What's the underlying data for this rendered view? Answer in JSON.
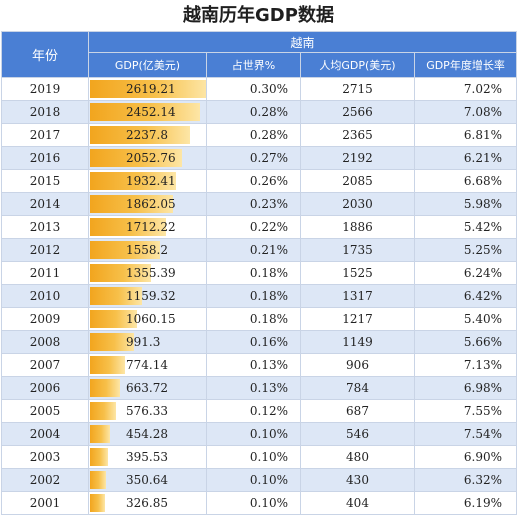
{
  "title": "越南历年GDP数据",
  "header": {
    "year": "年份",
    "country": "越南",
    "gdp": "GDP(亿美元)",
    "world_share": "占世界%",
    "per_capita": "人均GDP(美元)",
    "growth": "GDP年度增长率"
  },
  "rows": [
    {
      "year": "2019",
      "gdp": "2619.21",
      "gdp_value": 2619.21,
      "share": "0.30%",
      "per_capita": "2715",
      "growth": "7.02%"
    },
    {
      "year": "2018",
      "gdp": "2452.14",
      "gdp_value": 2452.14,
      "share": "0.28%",
      "per_capita": "2566",
      "growth": "7.08%"
    },
    {
      "year": "2017",
      "gdp": "2237.8",
      "gdp_value": 2237.8,
      "share": "0.28%",
      "per_capita": "2365",
      "growth": "6.81%"
    },
    {
      "year": "2016",
      "gdp": "2052.76",
      "gdp_value": 2052.76,
      "share": "0.27%",
      "per_capita": "2192",
      "growth": "6.21%"
    },
    {
      "year": "2015",
      "gdp": "1932.41",
      "gdp_value": 1932.41,
      "share": "0.26%",
      "per_capita": "2085",
      "growth": "6.68%"
    },
    {
      "year": "2014",
      "gdp": "1862.05",
      "gdp_value": 1862.05,
      "share": "0.23%",
      "per_capita": "2030",
      "growth": "5.98%"
    },
    {
      "year": "2013",
      "gdp": "1712.22",
      "gdp_value": 1712.22,
      "share": "0.22%",
      "per_capita": "1886",
      "growth": "5.42%"
    },
    {
      "year": "2012",
      "gdp": "1558.2",
      "gdp_value": 1558.2,
      "share": "0.21%",
      "per_capita": "1735",
      "growth": "5.25%"
    },
    {
      "year": "2011",
      "gdp": "1355.39",
      "gdp_value": 1355.39,
      "share": "0.18%",
      "per_capita": "1525",
      "growth": "6.24%"
    },
    {
      "year": "2010",
      "gdp": "1159.32",
      "gdp_value": 1159.32,
      "share": "0.18%",
      "per_capita": "1317",
      "growth": "6.42%"
    },
    {
      "year": "2009",
      "gdp": "1060.15",
      "gdp_value": 1060.15,
      "share": "0.18%",
      "per_capita": "1217",
      "growth": "5.40%"
    },
    {
      "year": "2008",
      "gdp": "991.3",
      "gdp_value": 991.3,
      "share": "0.16%",
      "per_capita": "1149",
      "growth": "5.66%"
    },
    {
      "year": "2007",
      "gdp": "774.14",
      "gdp_value": 774.14,
      "share": "0.13%",
      "per_capita": "906",
      "growth": "7.13%"
    },
    {
      "year": "2006",
      "gdp": "663.72",
      "gdp_value": 663.72,
      "share": "0.13%",
      "per_capita": "784",
      "growth": "6.98%"
    },
    {
      "year": "2005",
      "gdp": "576.33",
      "gdp_value": 576.33,
      "share": "0.12%",
      "per_capita": "687",
      "growth": "7.55%"
    },
    {
      "year": "2004",
      "gdp": "454.28",
      "gdp_value": 454.28,
      "share": "0.10%",
      "per_capita": "546",
      "growth": "7.54%"
    },
    {
      "year": "2003",
      "gdp": "395.53",
      "gdp_value": 395.53,
      "share": "0.10%",
      "per_capita": "480",
      "growth": "6.90%"
    },
    {
      "year": "2002",
      "gdp": "350.64",
      "gdp_value": 350.64,
      "share": "0.10%",
      "per_capita": "430",
      "growth": "6.32%"
    },
    {
      "year": "2001",
      "gdp": "326.85",
      "gdp_value": 326.85,
      "share": "0.10%",
      "per_capita": "404",
      "growth": "6.19%"
    }
  ],
  "colors": {
    "header_bg": "#4a7fd4",
    "stripe": "#dde7f6",
    "bar_start": "#f2a51e",
    "bar_end": "#fde6a6"
  }
}
